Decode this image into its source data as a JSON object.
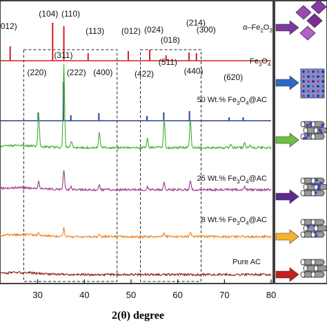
{
  "chart_data": {
    "type": "line",
    "xlabel": "2(θ) degree",
    "xlim": [
      20,
      80
    ],
    "x_ticks": [
      30,
      40,
      50,
      60,
      70,
      80
    ],
    "series": [
      {
        "name": "α-Fe2O3",
        "label_main": "α–Fe",
        "label_s1": "2",
        "label_mid": "O",
        "label_s2": "3",
        "color": "#d51c24",
        "baseline": 88,
        "kind": "sticks",
        "peaks": [
          [
            24.1,
            21
          ],
          [
            33.2,
            55
          ],
          [
            35.6,
            50
          ],
          [
            40.8,
            11
          ],
          [
            49.4,
            14
          ],
          [
            54.0,
            16
          ],
          [
            57.5,
            8
          ],
          [
            62.4,
            12
          ],
          [
            64.0,
            11
          ]
        ]
      },
      {
        "name": "Fe3O4",
        "label_main": "Fe",
        "label_s1": "3",
        "label_mid": "O",
        "label_s2": "4",
        "color": "#2b3b9b",
        "baseline": 175,
        "kind": "sticks",
        "peaks": [
          [
            30.1,
            12
          ],
          [
            35.5,
            56
          ],
          [
            37.1,
            8
          ],
          [
            43.1,
            11
          ],
          [
            53.4,
            7
          ],
          [
            57.0,
            12
          ],
          [
            62.5,
            14
          ],
          [
            71.0,
            5
          ],
          [
            74.0,
            5
          ]
        ]
      },
      {
        "name": "50 Wt.% Fe3O4@AC",
        "label_pre": "50 Wt.% Fe",
        "label_s1": "3",
        "label_mid": "O",
        "label_s2": "4",
        "label_post": "@AC",
        "color": "#3fae2a",
        "baseline": 214,
        "kind": "profile",
        "peaks": [
          [
            30.2,
            50
          ],
          [
            35.6,
            120
          ],
          [
            37.2,
            10
          ],
          [
            43.2,
            22
          ],
          [
            53.5,
            13
          ],
          [
            57.1,
            40
          ],
          [
            62.7,
            42
          ],
          [
            71.4,
            5
          ],
          [
            74.3,
            8
          ],
          [
            75.5,
            5
          ]
        ]
      },
      {
        "name": "25 Wt.% Fe3O4@AC",
        "label_pre": "25 Wt.% Fe",
        "label_s1": "3",
        "label_mid": "O",
        "label_s2": "4",
        "label_post": "@AC",
        "color": "#a0338f",
        "baseline": 275,
        "kind": "profile",
        "peaks": [
          [
            30.2,
            10
          ],
          [
            35.6,
            28
          ],
          [
            37.2,
            4
          ],
          [
            43.2,
            7
          ],
          [
            53.5,
            5
          ],
          [
            57.1,
            10
          ],
          [
            62.7,
            12
          ],
          [
            74.3,
            4
          ]
        ]
      },
      {
        "name": "8 Wt.% Fe3O4@AC",
        "label_pre": "8 Wt.% Fe",
        "label_s1": "3",
        "label_mid": "O",
        "label_s2": "4",
        "label_post": "@AC",
        "color": "#f07d1b",
        "baseline": 343,
        "kind": "profile",
        "peaks": [
          [
            30.2,
            4
          ],
          [
            35.6,
            12
          ],
          [
            43.2,
            4
          ],
          [
            57.1,
            5
          ],
          [
            62.7,
            6
          ]
        ]
      },
      {
        "name": "Pure AC",
        "label_pre": "Pure AC",
        "color": "#8b1a1a",
        "baseline": 398,
        "kind": "profile",
        "peaks": []
      }
    ],
    "hkl_top": [
      {
        "label": "(012)",
        "x": 24.1
      },
      {
        "label": "(104)",
        "x": 33.2
      },
      {
        "label": "(110)",
        "x": 35.6
      },
      {
        "label": "(113)",
        "x": 40.8
      },
      {
        "label": "(012)",
        "x": 49.4
      },
      {
        "label": "(024)",
        "x": 54.0
      },
      {
        "label": "(018)",
        "x": 57.5
      },
      {
        "label": "(214)",
        "x": 62.4
      },
      {
        "label": "(300)",
        "x": 64.0
      },
      {
        "label": "(311)",
        "x": 35.5
      }
    ],
    "hkl_mid": [
      {
        "label": "(220)",
        "x": 30.1
      },
      {
        "label": "(222)",
        "x": 37.1
      },
      {
        "label": "(400)",
        "x": 43.1
      },
      {
        "label": "(422)",
        "x": 53.4
      },
      {
        "label": "(511)",
        "x": 57.0
      },
      {
        "label": "(440)",
        "x": 62.5
      },
      {
        "label": "(620)",
        "x": 71.0
      }
    ],
    "dashed_regions": [
      [
        27,
        47
      ],
      [
        52,
        65
      ]
    ],
    "arrow_colors": [
      "#7b3a9c",
      "#2f68c4",
      "#6fbf44",
      "#5a2a8c",
      "#f4b32a",
      "#c4201f"
    ]
  }
}
